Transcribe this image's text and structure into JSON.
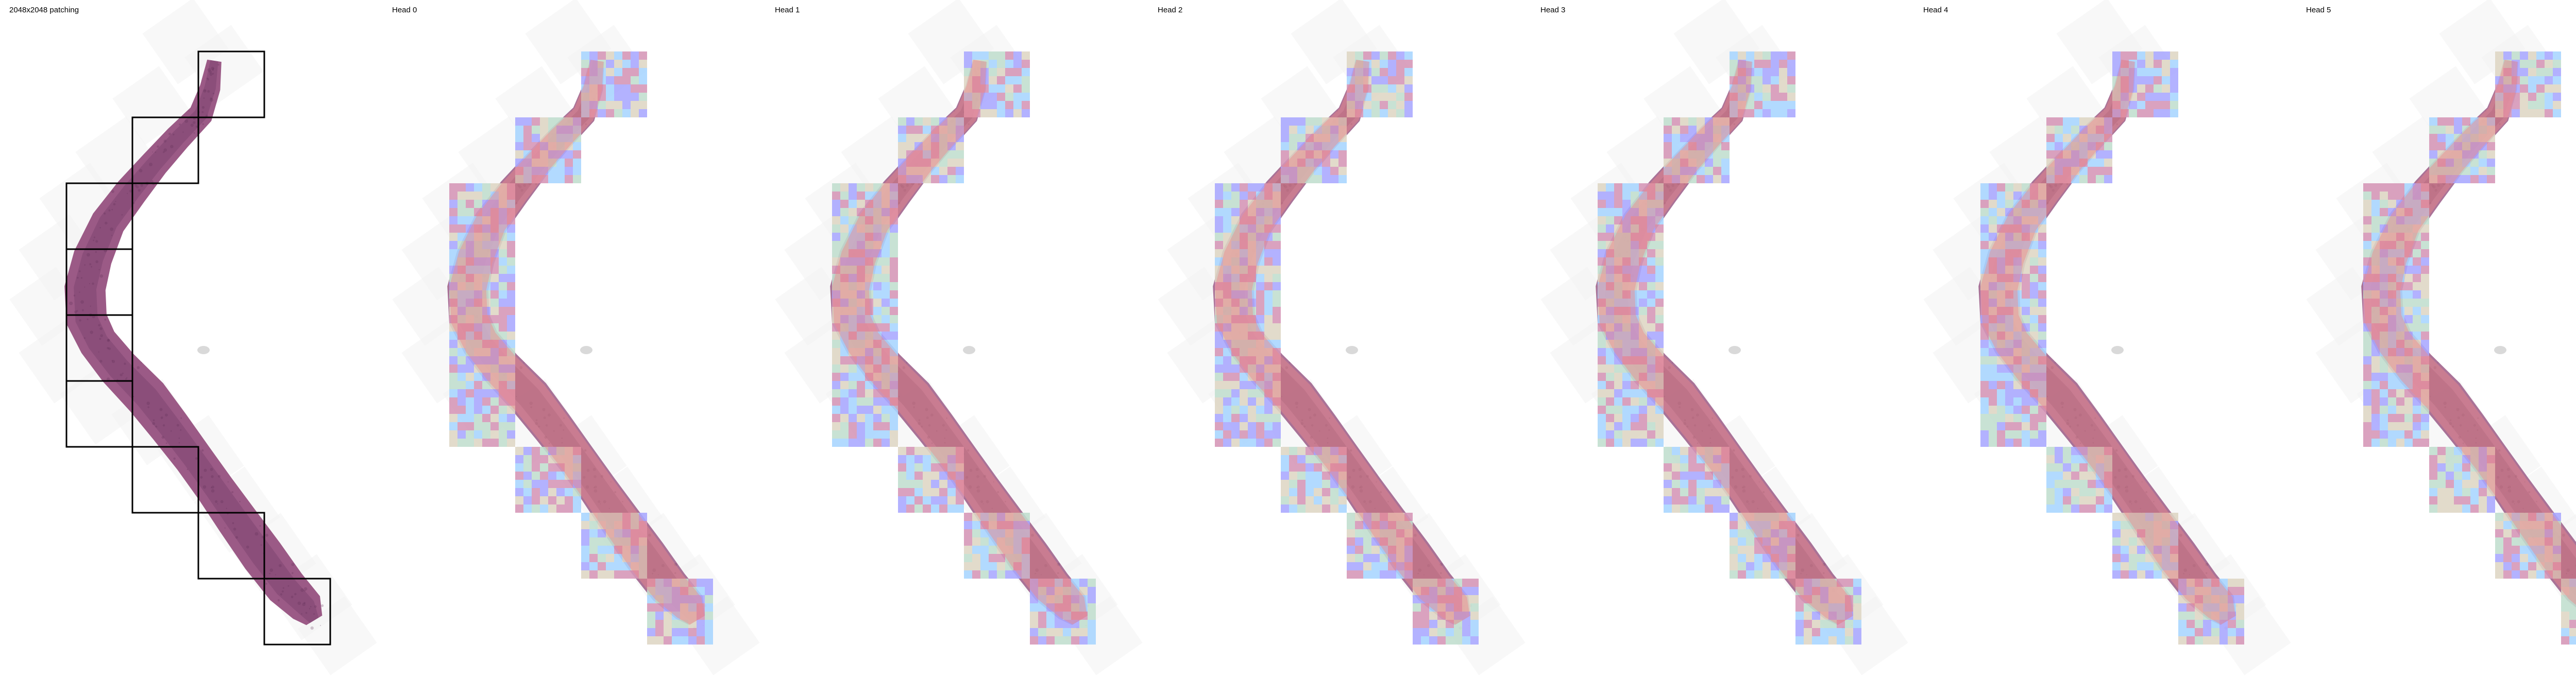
{
  "panels": [
    {
      "title": "2048x2048 patching",
      "kind": "patching"
    },
    {
      "title": "Head 0",
      "kind": "heatmap"
    },
    {
      "title": "Head 1",
      "kind": "heatmap"
    },
    {
      "title": "Head 2",
      "kind": "heatmap"
    },
    {
      "title": "Head 3",
      "kind": "heatmap"
    },
    {
      "title": "Head 4",
      "kind": "heatmap"
    },
    {
      "title": "Head 5",
      "kind": "heatmap"
    }
  ],
  "colors": {
    "tissue": "#9b5a86",
    "tissue_dark": "#6d3a63",
    "background_tile": "#f2f2f2",
    "patch_border": "#000000",
    "heat_low": "#a9a8ff",
    "heat_mid_cyan": "#a8f0ff",
    "heat_mid_green": "#cfffb0",
    "heat_high_yellow": "#fff2a0",
    "heat_max_red": "#f08a8a"
  }
}
